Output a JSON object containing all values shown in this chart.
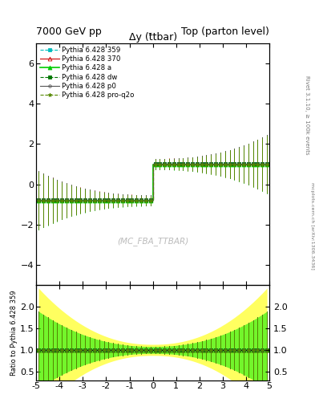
{
  "title_left": "7000 GeV pp",
  "title_right": "Top (parton level)",
  "main_title": "Δy (t̄tbar)",
  "watermark": "(MC_FBA_TTBAR)",
  "right_label": "Rivet 3.1.10, ≥ 100k events",
  "right_label2": "mcplots.cern.ch [arXiv:1306.3436]",
  "ylabel_ratio": "Ratio to Pythia 6.428 359",
  "xmin": -5,
  "xmax": 5,
  "ymin": -5,
  "ymax": 7,
  "ratio_ymin": 0.3,
  "ratio_ymax": 2.5,
  "step_y_neg": -0.8,
  "step_y_pos": 1.0,
  "n_bins": 50,
  "series": [
    {
      "label": "Pythia 6.428 359",
      "color": "#00bbbb",
      "linestyle": "--",
      "marker": "s",
      "markersize": 2.5,
      "linewidth": 0.8,
      "fillstyle": "full"
    },
    {
      "label": "Pythia 6.428 370",
      "color": "#cc0000",
      "linestyle": "-",
      "marker": "^",
      "markersize": 3.5,
      "linewidth": 0.8,
      "fillstyle": "none"
    },
    {
      "label": "Pythia 6.428 a",
      "color": "#00cc00",
      "linestyle": "-",
      "marker": "^",
      "markersize": 3.5,
      "linewidth": 1.2,
      "fillstyle": "full"
    },
    {
      "label": "Pythia 6.428 dw",
      "color": "#007700",
      "linestyle": "--",
      "marker": "s",
      "markersize": 2.5,
      "linewidth": 0.8,
      "fillstyle": "full"
    },
    {
      "label": "Pythia 6.428 p0",
      "color": "#555555",
      "linestyle": "-",
      "marker": "o",
      "markersize": 2.5,
      "linewidth": 0.8,
      "fillstyle": "none"
    },
    {
      "label": "Pythia 6.428 pro-q2o",
      "color": "#558800",
      "linestyle": "--",
      "marker": "*",
      "markersize": 3.5,
      "linewidth": 0.8,
      "fillstyle": "full"
    }
  ],
  "band_inner_color": "#00ee00",
  "band_inner_alpha": 0.55,
  "band_outer_color": "#ffff44",
  "band_outer_alpha": 0.85,
  "background_color": "#ffffff",
  "yticks_main": [
    -4,
    -2,
    0,
    2,
    4,
    6
  ],
  "xticks": [
    -5,
    -4,
    -3,
    -2,
    -1,
    0,
    1,
    2,
    3,
    4,
    5
  ],
  "ratio_yticks": [
    0.5,
    1.0,
    1.5,
    2.0
  ]
}
